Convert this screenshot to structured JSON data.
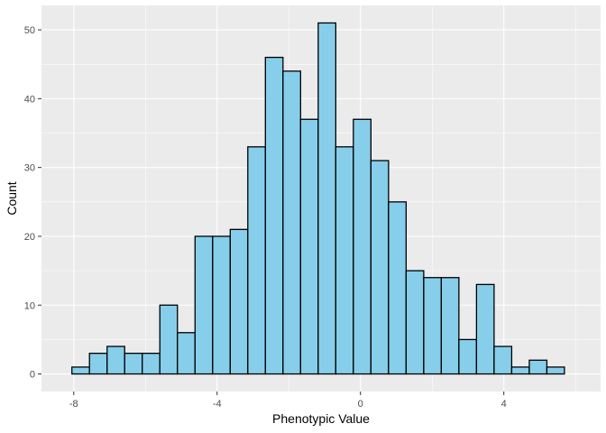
{
  "chart_data": {
    "type": "bar",
    "title": "",
    "xlabel": "Phenotypic Value",
    "ylabel": "Count",
    "xlim": [
      -8.9,
      6.7
    ],
    "ylim": [
      -2.55,
      53.55
    ],
    "x_ticks": [
      -8,
      -4,
      0,
      4
    ],
    "x_tick_labels": [
      "-8",
      "-4",
      "0",
      "4"
    ],
    "y_ticks": [
      0,
      10,
      20,
      30,
      40,
      50
    ],
    "y_tick_labels": [
      "0",
      "10",
      "20",
      "30",
      "40",
      "50"
    ],
    "grid": true,
    "bin_width": 0.4908,
    "bin_centers": [
      -7.806,
      -7.315,
      -6.824,
      -6.333,
      -5.843,
      -5.352,
      -4.861,
      -4.37,
      -3.879,
      -3.388,
      -2.898,
      -2.407,
      -1.916,
      -1.425,
      -0.934,
      -0.443,
      0.047,
      0.538,
      1.029,
      1.52,
      2.011,
      2.501,
      2.992,
      3.483,
      3.974,
      4.465,
      4.956,
      5.446
    ],
    "values": [
      1,
      3,
      4,
      3,
      3,
      10,
      6,
      20,
      20,
      21,
      33,
      46,
      44,
      37,
      51,
      33,
      37,
      31,
      25,
      15,
      14,
      14,
      5,
      13,
      4,
      1,
      2,
      1
    ],
    "colors": {
      "panel_background": "#ebebeb",
      "grid_major": "#ffffff",
      "bar_fill": "#87ceeb",
      "bar_stroke": "#000000",
      "tick_text": "#4d4d4d"
    }
  }
}
